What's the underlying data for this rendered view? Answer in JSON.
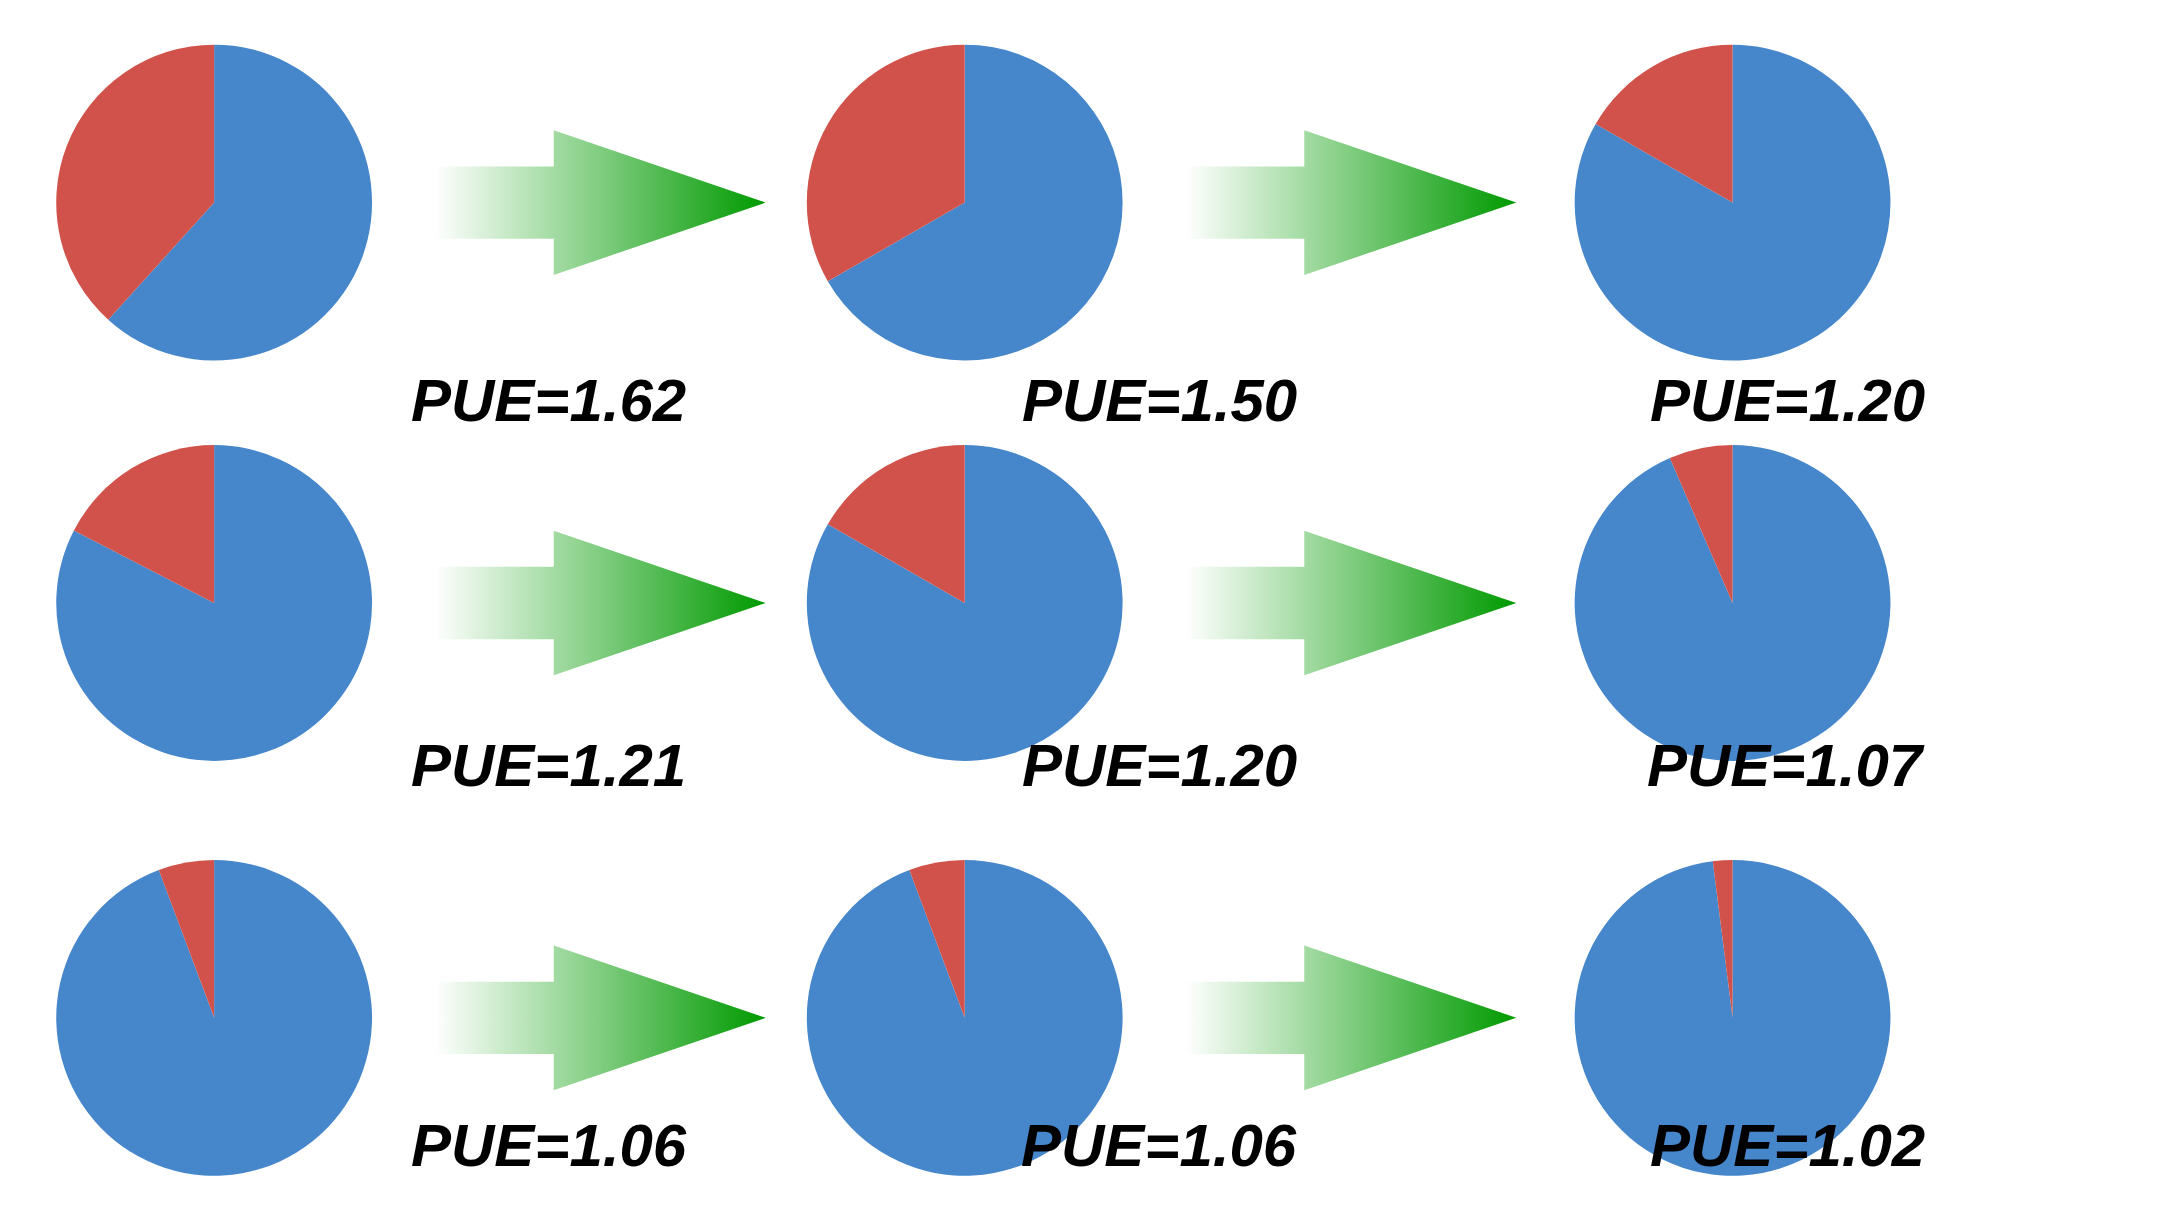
{
  "chart_data": [
    {
      "type": "pie",
      "categories": [
        null,
        null
      ],
      "values": [
        61.7,
        38.3
      ],
      "colors": [
        "#4686cb",
        "#d0524a"
      ],
      "annotations": [
        "PUE=1.62"
      ]
    },
    {
      "type": "pie",
      "categories": [
        null,
        null
      ],
      "values": [
        66.7,
        33.3
      ],
      "colors": [
        "#4686cb",
        "#d0524a"
      ],
      "annotations": [
        "PUE=1.50"
      ]
    },
    {
      "type": "pie",
      "categories": [
        null,
        null
      ],
      "values": [
        83.3,
        16.7
      ],
      "colors": [
        "#4686cb",
        "#d0524a"
      ],
      "annotations": [
        "PUE=1.20"
      ]
    },
    {
      "type": "pie",
      "categories": [
        null,
        null
      ],
      "values": [
        82.6,
        17.4
      ],
      "colors": [
        "#4686cb",
        "#d0524a"
      ],
      "annotations": [
        "PUE=1.21"
      ]
    },
    {
      "type": "pie",
      "categories": [
        null,
        null
      ],
      "values": [
        83.3,
        16.7
      ],
      "colors": [
        "#4686cb",
        "#d0524a"
      ],
      "annotations": [
        "PUE=1.20"
      ]
    },
    {
      "type": "pie",
      "categories": [
        null,
        null
      ],
      "values": [
        93.5,
        6.5
      ],
      "colors": [
        "#4686cb",
        "#d0524a"
      ],
      "annotations": [
        "PUE=1.07"
      ]
    },
    {
      "type": "pie",
      "categories": [
        null,
        null
      ],
      "values": [
        94.3,
        5.7
      ],
      "colors": [
        "#4686cb",
        "#d0524a"
      ],
      "annotations": [
        "PUE=1.06"
      ]
    },
    {
      "type": "pie",
      "categories": [
        null,
        null
      ],
      "values": [
        94.3,
        5.7
      ],
      "colors": [
        "#4686cb",
        "#d0524a"
      ],
      "annotations": [
        "PUE=1.06"
      ]
    },
    {
      "type": "pie",
      "categories": [
        null,
        null
      ],
      "values": [
        98.0,
        2.0
      ],
      "colors": [
        "#4686cb",
        "#d0524a"
      ],
      "annotations": [
        "PUE=1.02"
      ]
    }
  ]
}
